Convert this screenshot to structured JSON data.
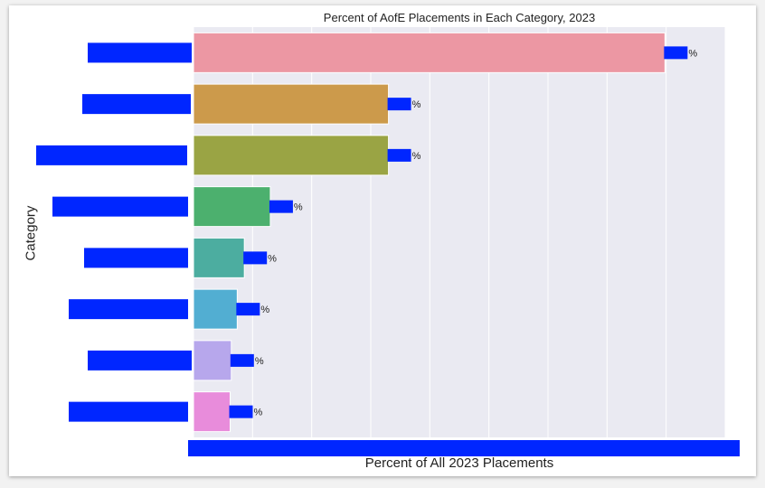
{
  "chart_data": {
    "type": "bar",
    "orientation": "horizontal",
    "title": "Percent of AofE Placements in Each Category, 2023",
    "xlabel": "Percent of All 2023 Placements",
    "ylabel": "Category",
    "categories": [
      "",
      "",
      "",
      "",
      "",
      "",
      "",
      ""
    ],
    "values": [
      39.9,
      16.5,
      16.5,
      6.5,
      4.3,
      3.7,
      3.2,
      3.1
    ],
    "value_label_suffix": "%",
    "xlim": [
      0,
      45
    ],
    "grid": true,
    "gridline_step": 5,
    "colors": [
      "#ec97a3",
      "#cc9a4b",
      "#9aa444",
      "#4cb06e",
      "#4cada0",
      "#52aed2",
      "#b7a7ec",
      "#e88cdb"
    ],
    "plot_background": "#eaeaf2",
    "grid_color": "#ffffff",
    "redaction_color": "#0026ff"
  }
}
